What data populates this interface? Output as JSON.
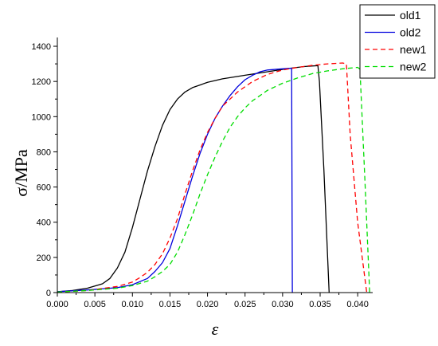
{
  "chart_data": {
    "type": "line",
    "xlabel": "ε",
    "ylabel": "σ/MPa",
    "xlim": [
      0,
      0.042
    ],
    "ylim": [
      0,
      1450
    ],
    "grid": false,
    "legend_position": "top-right",
    "x_ticks": [
      0,
      0.005,
      0.01,
      0.015,
      0.02,
      0.025,
      0.03,
      0.035,
      0.04
    ],
    "x_tick_labels": [
      "0.000",
      "0.005",
      "0.010",
      "0.015",
      "0.020",
      "0.025",
      "0.030",
      "0.035",
      "0.040"
    ],
    "y_ticks": [
      0,
      200,
      400,
      600,
      800,
      1000,
      1200,
      1400
    ],
    "y_tick_labels": [
      "0",
      "200",
      "400",
      "600",
      "800",
      "1000",
      "1200",
      "1400"
    ],
    "series": [
      {
        "name": "old1",
        "color": "#000000",
        "dash": "solid",
        "points": [
          [
            0,
            5
          ],
          [
            0.002,
            12
          ],
          [
            0.004,
            25
          ],
          [
            0.006,
            50
          ],
          [
            0.007,
            80
          ],
          [
            0.008,
            140
          ],
          [
            0.009,
            230
          ],
          [
            0.01,
            370
          ],
          [
            0.011,
            530
          ],
          [
            0.012,
            690
          ],
          [
            0.013,
            830
          ],
          [
            0.014,
            950
          ],
          [
            0.015,
            1040
          ],
          [
            0.016,
            1100
          ],
          [
            0.017,
            1140
          ],
          [
            0.018,
            1165
          ],
          [
            0.02,
            1195
          ],
          [
            0.022,
            1215
          ],
          [
            0.025,
            1235
          ],
          [
            0.028,
            1255
          ],
          [
            0.031,
            1275
          ],
          [
            0.033,
            1285
          ],
          [
            0.0347,
            1290
          ],
          [
            0.0349,
            1200
          ],
          [
            0.0355,
            700
          ],
          [
            0.0362,
            0
          ]
        ]
      },
      {
        "name": "old2",
        "color": "#0000dd",
        "dash": "solid",
        "points": [
          [
            0,
            5
          ],
          [
            0.004,
            15
          ],
          [
            0.008,
            28
          ],
          [
            0.01,
            45
          ],
          [
            0.012,
            80
          ],
          [
            0.013,
            120
          ],
          [
            0.014,
            170
          ],
          [
            0.015,
            250
          ],
          [
            0.016,
            380
          ],
          [
            0.017,
            520
          ],
          [
            0.018,
            660
          ],
          [
            0.019,
            790
          ],
          [
            0.02,
            900
          ],
          [
            0.021,
            990
          ],
          [
            0.022,
            1060
          ],
          [
            0.023,
            1120
          ],
          [
            0.024,
            1170
          ],
          [
            0.025,
            1210
          ],
          [
            0.026,
            1235
          ],
          [
            0.027,
            1255
          ],
          [
            0.028,
            1265
          ],
          [
            0.03,
            1272
          ],
          [
            0.031,
            1275
          ],
          [
            0.0312,
            1275
          ],
          [
            0.0313,
            0
          ]
        ]
      },
      {
        "name": "new1",
        "color": "#ff0000",
        "dash": "dashed",
        "points": [
          [
            0,
            3
          ],
          [
            0.004,
            12
          ],
          [
            0.008,
            35
          ],
          [
            0.01,
            60
          ],
          [
            0.011,
            85
          ],
          [
            0.012,
            115
          ],
          [
            0.013,
            160
          ],
          [
            0.014,
            220
          ],
          [
            0.015,
            310
          ],
          [
            0.016,
            420
          ],
          [
            0.017,
            560
          ],
          [
            0.018,
            690
          ],
          [
            0.019,
            810
          ],
          [
            0.02,
            910
          ],
          [
            0.021,
            990
          ],
          [
            0.022,
            1060
          ],
          [
            0.024,
            1140
          ],
          [
            0.026,
            1200
          ],
          [
            0.028,
            1240
          ],
          [
            0.03,
            1265
          ],
          [
            0.032,
            1280
          ],
          [
            0.034,
            1292
          ],
          [
            0.036,
            1300
          ],
          [
            0.038,
            1305
          ],
          [
            0.0385,
            1300
          ],
          [
            0.039,
            900
          ],
          [
            0.04,
            400
          ],
          [
            0.0412,
            0
          ]
        ]
      },
      {
        "name": "new2",
        "color": "#00dd00",
        "dash": "dashed",
        "points": [
          [
            0,
            3
          ],
          [
            0.004,
            12
          ],
          [
            0.008,
            25
          ],
          [
            0.01,
            40
          ],
          [
            0.012,
            65
          ],
          [
            0.013,
            90
          ],
          [
            0.014,
            120
          ],
          [
            0.015,
            160
          ],
          [
            0.016,
            230
          ],
          [
            0.017,
            330
          ],
          [
            0.018,
            440
          ],
          [
            0.019,
            560
          ],
          [
            0.02,
            670
          ],
          [
            0.021,
            770
          ],
          [
            0.022,
            860
          ],
          [
            0.023,
            940
          ],
          [
            0.024,
            1000
          ],
          [
            0.025,
            1050
          ],
          [
            0.026,
            1090
          ],
          [
            0.027,
            1120
          ],
          [
            0.028,
            1150
          ],
          [
            0.03,
            1190
          ],
          [
            0.032,
            1220
          ],
          [
            0.034,
            1245
          ],
          [
            0.036,
            1260
          ],
          [
            0.038,
            1272
          ],
          [
            0.04,
            1280
          ],
          [
            0.0403,
            1270
          ],
          [
            0.041,
            600
          ],
          [
            0.0416,
            0
          ]
        ]
      }
    ]
  }
}
